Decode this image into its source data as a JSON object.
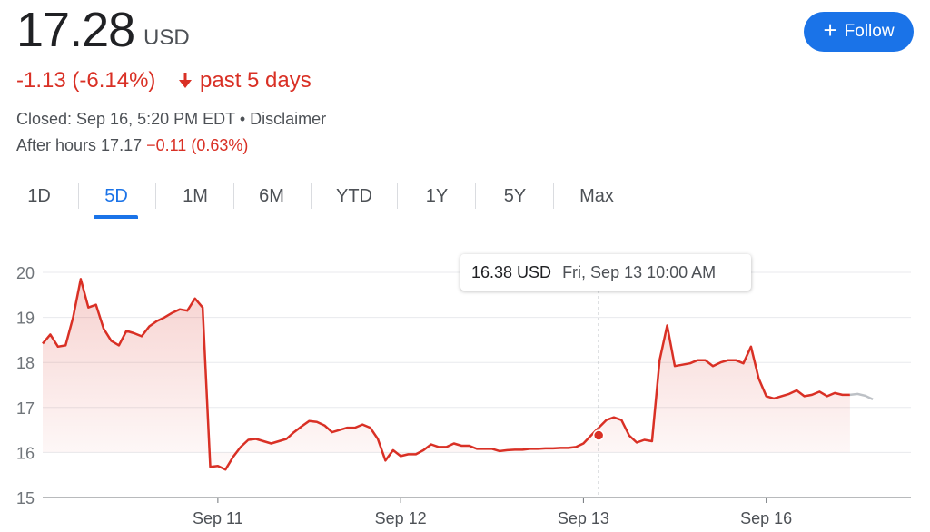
{
  "quote": {
    "price": "17.28",
    "currency": "USD",
    "change": "-1.13 (-6.14%)",
    "period": "past 5 days",
    "closed_label": "Closed: Sep 16, 5:20 PM EDT",
    "separator": "•",
    "disclaimer": "Disclaimer",
    "after_hours_label": "After hours 17.17",
    "after_hours_change": "−0.11 (0.63%)"
  },
  "follow_button": {
    "icon": "plus-icon",
    "label": "Follow"
  },
  "tabs": [
    {
      "label": "1D"
    },
    {
      "label": "5D",
      "active": true
    },
    {
      "label": "1M"
    },
    {
      "label": "6M"
    },
    {
      "label": "YTD"
    },
    {
      "label": "1Y"
    },
    {
      "label": "5Y"
    },
    {
      "label": "Max"
    }
  ],
  "tooltip": {
    "value": "16.38 USD",
    "time": "Fri, Sep 13 10:00 AM"
  },
  "colors": {
    "down": "#d93025",
    "accent": "#1a73e8",
    "grid": "#e8eaed",
    "axis": "#70757a"
  },
  "chart_data": {
    "type": "area",
    "ylim": [
      15,
      20
    ],
    "y_ticks": [
      15,
      16,
      17,
      18,
      19,
      20
    ],
    "x_range": [
      0,
      114
    ],
    "x_ticks": [
      {
        "x": 23,
        "label": "Sep 11"
      },
      {
        "x": 47,
        "label": "Sep 12"
      },
      {
        "x": 71,
        "label": "Sep 13"
      },
      {
        "x": 95,
        "label": "Sep 16"
      }
    ],
    "highlight": {
      "x": 73,
      "y": 16.38
    },
    "series": [
      {
        "values": [
          18.42,
          18.62,
          18.35,
          18.38,
          19.0,
          19.85,
          19.22,
          19.28,
          18.75,
          18.48,
          18.38,
          18.7,
          18.65,
          18.58,
          18.8,
          18.92,
          19.0,
          19.1,
          19.18,
          19.15,
          19.42,
          19.22,
          15.68,
          15.7,
          15.62,
          15.9,
          16.12,
          16.28,
          16.3,
          16.25,
          16.2,
          16.25,
          16.3,
          16.45,
          16.58,
          16.7,
          16.68,
          16.6,
          16.45,
          16.5,
          16.55,
          16.55,
          16.62,
          16.55,
          16.3,
          15.82,
          16.05,
          15.92,
          15.96,
          15.96,
          16.05,
          16.18,
          16.12,
          16.12,
          16.2,
          16.15,
          16.15,
          16.08,
          16.08,
          16.08,
          16.03,
          16.05,
          16.06,
          16.06,
          16.08,
          16.08,
          16.09,
          16.09,
          16.1,
          16.1,
          16.12,
          16.2,
          16.38,
          16.55,
          16.72,
          16.78,
          16.72,
          16.38,
          16.22,
          16.28,
          16.25,
          18.05,
          18.82,
          17.92,
          17.95,
          17.98,
          18.05,
          18.05,
          17.92,
          18.0,
          18.05,
          18.05,
          17.98,
          18.35,
          17.65,
          17.25,
          17.2,
          17.25,
          17.3,
          17.38,
          17.25,
          17.28,
          17.35,
          17.25,
          17.32,
          17.28,
          17.28
        ]
      },
      {
        "values": [
          null,
          null,
          null,
          null,
          null,
          null,
          null,
          null,
          null,
          null,
          null,
          null,
          null,
          null,
          null,
          null,
          null,
          null,
          null,
          null,
          null,
          null,
          null,
          null,
          null,
          null,
          null,
          null,
          null,
          null,
          null,
          null,
          null,
          null,
          null,
          null,
          null,
          null,
          null,
          null,
          null,
          null,
          null,
          null,
          null,
          null,
          null,
          null,
          null,
          null,
          null,
          null,
          null,
          null,
          null,
          null,
          null,
          null,
          null,
          null,
          null,
          null,
          null,
          null,
          null,
          null,
          null,
          null,
          null,
          null,
          null,
          null,
          null,
          null,
          null,
          null,
          null,
          null,
          null,
          null,
          null,
          null,
          null,
          null,
          null,
          null,
          null,
          null,
          null,
          null,
          null,
          null,
          null,
          null,
          null,
          null,
          null,
          null,
          null,
          null,
          null,
          null,
          null,
          null,
          null,
          null,
          17.28,
          17.3,
          17.26,
          17.18
        ]
      }
    ]
  }
}
